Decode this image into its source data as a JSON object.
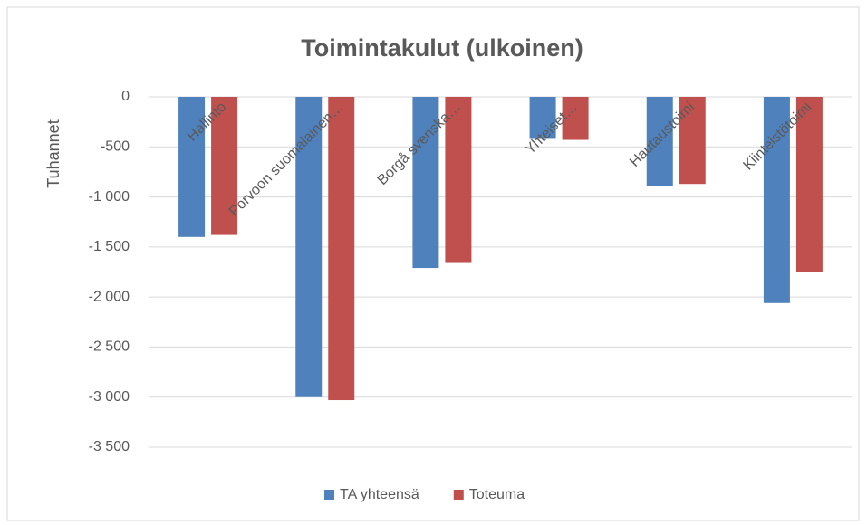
{
  "chart_data": {
    "type": "bar",
    "title": "Toimintakulut (ulkoinen)",
    "y_label": "Tuhannet",
    "categories": [
      "Hallinto",
      "Porvoon suomalainen…",
      "Borgå svenska…",
      "Yhteiset…",
      "Hautaustoimi",
      "Kiinteistötoimi"
    ],
    "series": [
      {
        "name": "TA yhteensä",
        "color": "#4f81bd",
        "values": [
          -1400,
          -3000,
          -1710,
          -420,
          -890,
          -2060
        ]
      },
      {
        "name": "Toteuma",
        "color": "#c0504d",
        "values": [
          -1380,
          -3030,
          -1660,
          -430,
          -870,
          -1750
        ]
      }
    ],
    "ylim": [
      0,
      -3500
    ],
    "yticks": [
      0,
      -500,
      {
        "value": -1000,
        "label": "-1 000"
      },
      {
        "value": -1500,
        "label": "-1 500"
      },
      {
        "value": -2000,
        "label": "-2 000"
      },
      {
        "value": -2500,
        "label": "-2 500"
      },
      {
        "value": -3000,
        "label": "-3 000"
      },
      {
        "value": -3500,
        "label": "-3 500"
      }
    ],
    "grid": true,
    "legend": "bottom"
  }
}
